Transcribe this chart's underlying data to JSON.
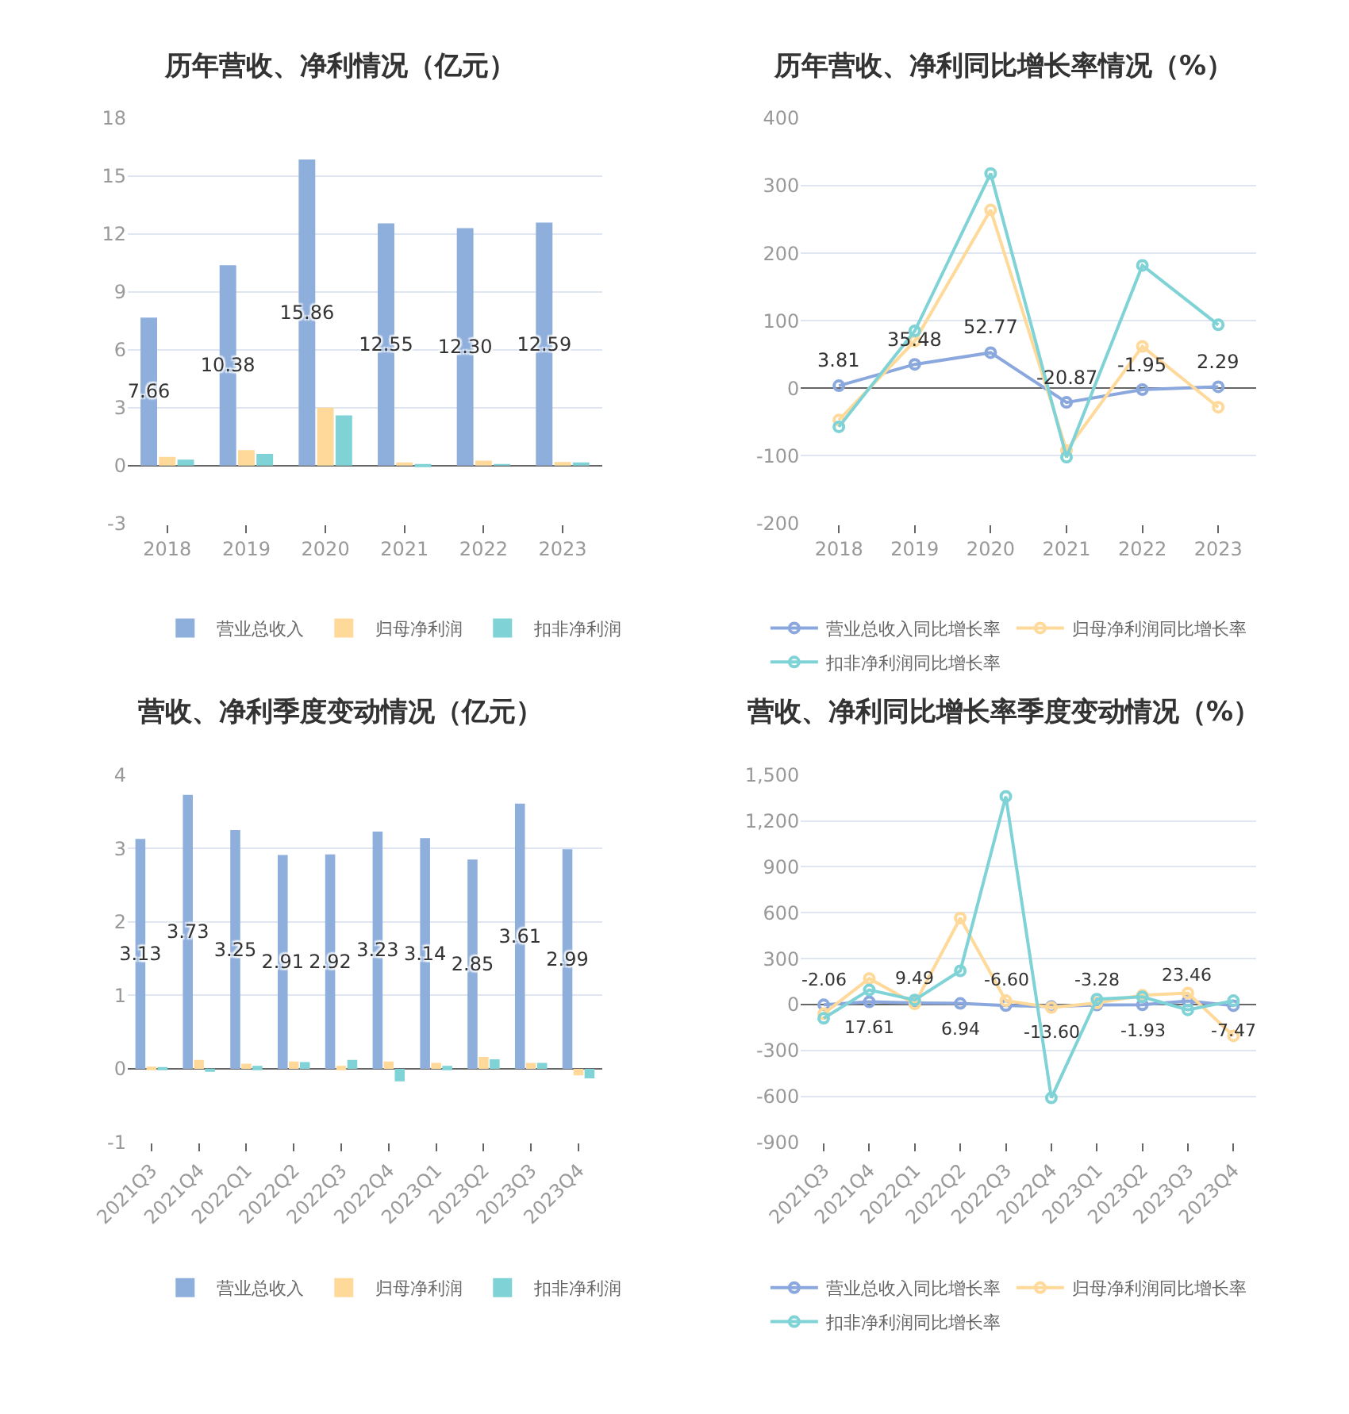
{
  "chart_data": [
    {
      "type": "bar",
      "title": "历年营收、净利情况（亿元）",
      "categories": [
        "2018",
        "2019",
        "2020",
        "2021",
        "2022",
        "2023"
      ],
      "ylim": [
        -3,
        18
      ],
      "yticks": [
        -3,
        0,
        3,
        6,
        9,
        12,
        15,
        18
      ],
      "grid": "y",
      "legend": "bottom",
      "series": [
        {
          "name": "营业总收入",
          "color": "#8eaedb",
          "values": [
            7.66,
            10.38,
            15.86,
            12.55,
            12.3,
            12.59
          ],
          "value_labels": [
            "7.66",
            "10.38",
            "15.86",
            "12.55",
            "12.30",
            "12.59"
          ]
        },
        {
          "name": "归母净利润",
          "color": "#ffd999",
          "values": [
            0.45,
            0.8,
            3.0,
            0.15,
            0.25,
            0.18
          ]
        },
        {
          "name": "扣非净利润",
          "color": "#7fd3d6",
          "values": [
            0.3,
            0.6,
            2.6,
            -0.05,
            0.05,
            0.08
          ]
        }
      ]
    },
    {
      "type": "line",
      "title": "历年营收、净利同比增长率情况（%）",
      "categories": [
        "2018",
        "2019",
        "2020",
        "2021",
        "2022",
        "2023"
      ],
      "ylim": [
        -200,
        400
      ],
      "yticks": [
        -200,
        -100,
        0,
        100,
        200,
        300,
        400
      ],
      "grid": "y",
      "legend": "bottom",
      "marker": "circle",
      "line_style": "solid",
      "series": [
        {
          "name": "营业总收入同比增长率",
          "color": "#8aa8dd",
          "values": [
            3.81,
            35.48,
            52.77,
            -20.87,
            -1.95,
            2.29
          ],
          "value_labels": [
            "3.81",
            "35.48",
            "52.77",
            "-20.87",
            "-1.95",
            "2.29"
          ]
        },
        {
          "name": "归母净利润同比增长率",
          "color": "#ffd999",
          "values": [
            -47,
            70,
            264,
            -92,
            62,
            -28
          ]
        },
        {
          "name": "扣非净利润同比增长率",
          "color": "#7fd3d6",
          "values": [
            -57,
            85,
            318,
            -102,
            182,
            94
          ]
        }
      ]
    },
    {
      "type": "bar",
      "title": "营收、净利季度变动情况（亿元）",
      "categories": [
        "2021Q3",
        "2021Q4",
        "2022Q1",
        "2022Q2",
        "2022Q3",
        "2022Q4",
        "2023Q1",
        "2023Q2",
        "2023Q3",
        "2023Q4"
      ],
      "ylim": [
        -1,
        4
      ],
      "yticks": [
        -1,
        0,
        1,
        2,
        3,
        4
      ],
      "grid": "y",
      "legend": "bottom",
      "series": [
        {
          "name": "营业总收入",
          "color": "#8eaedb",
          "values": [
            3.13,
            3.73,
            3.25,
            2.91,
            2.92,
            3.23,
            3.14,
            2.85,
            3.61,
            2.99
          ],
          "value_labels": [
            "3.13",
            "3.73",
            "3.25",
            "2.91",
            "2.92",
            "3.23",
            "3.14",
            "2.85",
            "3.61",
            "2.99"
          ]
        },
        {
          "name": "归母净利润",
          "color": "#ffd999",
          "values": [
            0.03,
            0.12,
            0.07,
            0.1,
            0.04,
            0.1,
            0.08,
            0.16,
            0.08,
            -0.09
          ]
        },
        {
          "name": "扣非净利润",
          "color": "#7fd3d6",
          "values": [
            0.02,
            -0.02,
            0.04,
            0.09,
            0.12,
            -0.17,
            0.04,
            0.13,
            0.08,
            -0.13
          ]
        }
      ]
    },
    {
      "type": "line",
      "title": "营收、净利同比增长率季度变动情况（%）",
      "categories": [
        "2021Q3",
        "2021Q4",
        "2022Q1",
        "2022Q2",
        "2022Q3",
        "2022Q4",
        "2023Q1",
        "2023Q2",
        "2023Q3",
        "2023Q4"
      ],
      "ylim": [
        -900,
        1500
      ],
      "yticks": [
        -900,
        -600,
        -300,
        0,
        300,
        600,
        900,
        {
          "value": 1200,
          "label": "1,200"
        },
        {
          "value": 1500,
          "label": "1,500"
        }
      ],
      "grid": "y",
      "legend": "bottom",
      "marker": "circle",
      "line_style": "solid",
      "series": [
        {
          "name": "营业总收入同比增长率",
          "color": "#8aa8dd",
          "values": [
            -2.06,
            17.61,
            9.49,
            6.94,
            -6.6,
            -13.6,
            -3.28,
            -1.93,
            23.46,
            -7.47
          ],
          "value_labels": [
            "-2.06",
            "17.61",
            "9.49",
            "6.94",
            "-6.60",
            "-13.60",
            "-3.28",
            "-1.93",
            "23.46",
            "-7.47"
          ]
        },
        {
          "name": "归母净利润同比增长率",
          "color": "#ffd999",
          "values": [
            -60,
            170,
            5,
            565,
            25,
            -20,
            10,
            60,
            75,
            -205
          ]
        },
        {
          "name": "扣非净利润同比增长率",
          "color": "#7fd3d6",
          "values": [
            -90,
            95,
            30,
            220,
            1360,
            -610,
            35,
            50,
            -35,
            25
          ]
        }
      ]
    }
  ]
}
